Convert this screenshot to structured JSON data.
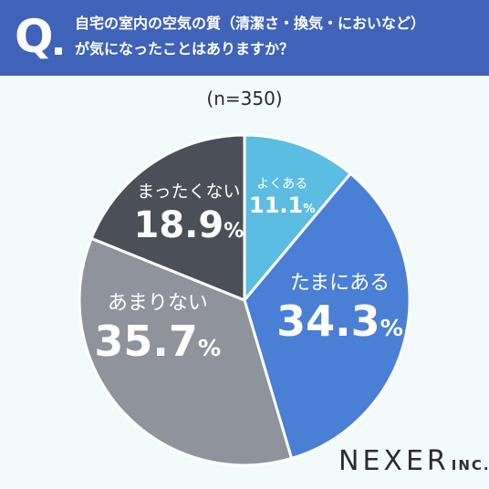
{
  "header": {
    "q_mark": "Q",
    "question_line1": "自宅の室内の空気の質（清潔さ・換気・においなど）",
    "question_line2": "が気になったことはありますか？"
  },
  "sample_size": "(n=350)",
  "brand": {
    "name": "NEXER",
    "suffix": "INC."
  },
  "chart_data": {
    "type": "pie",
    "slices": [
      {
        "label": "よくある",
        "value": 11.1,
        "display": "11.1",
        "unit": "%",
        "color": "#5bbde2"
      },
      {
        "label": "たまにある",
        "value": 34.3,
        "display": "34.3",
        "unit": "%",
        "color": "#4a7fd6"
      },
      {
        "label": "あまりない",
        "value": 35.7,
        "display": "35.7",
        "unit": "%",
        "color": "#8f939c"
      },
      {
        "label": "まったくない",
        "value": 18.9,
        "display": "18.9",
        "unit": "%",
        "color": "#4b4f57"
      }
    ],
    "start_angle_deg": 0,
    "direction": "clockwise"
  }
}
